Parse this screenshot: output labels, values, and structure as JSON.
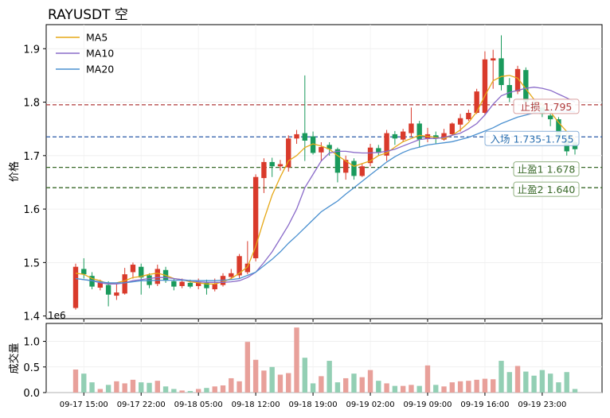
{
  "chart_data": {
    "type": "candlestick",
    "title": "RAYUSDT  空",
    "ylabel": "价格",
    "volume_ylabel": "成交量",
    "volume_multiplier_label": "1e6",
    "ylim": [
      1.395,
      1.945
    ],
    "yticks": [
      1.4,
      1.5,
      1.6,
      1.7,
      1.8,
      1.9
    ],
    "volume_ylim": [
      0,
      1.35
    ],
    "volume_yticks": [
      0.0,
      0.5,
      1.0
    ],
    "x_tick_labels": [
      "09-17 15:00",
      "09-17 22:00",
      "09-18 05:00",
      "09-18 12:00",
      "09-18 19:00",
      "09-19 02:00",
      "09-19 09:00",
      "09-19 16:00",
      "09-19 23:00"
    ],
    "x_tick_indices": [
      1,
      8,
      15,
      22,
      29,
      36,
      43,
      50,
      57
    ],
    "legend": {
      "position": "top-left",
      "entries": [
        {
          "name": "MA5",
          "color": "#e6a817"
        },
        {
          "name": "MA10",
          "color": "#8a6bc9"
        },
        {
          "name": "MA20",
          "color": "#4a90d0"
        }
      ]
    },
    "colors": {
      "up": "#d93a2b",
      "down": "#1a9a5c",
      "vol_up": "#e8a09a",
      "vol_down": "#93cfb4"
    },
    "levels": [
      {
        "label": "止损 1.795",
        "value": 1.795,
        "color": "#b03a3a",
        "text_color": "#b03a3a",
        "border": "#d9a0a0"
      },
      {
        "label": "入场 1.735-1.755",
        "value": 1.735,
        "color": "#2a5aa8",
        "text_color": "#2a6fb0",
        "border": "#8ab0d8"
      },
      {
        "label": "止盈1 1.678",
        "value": 1.678,
        "color": "#3a6a2a",
        "text_color": "#3a6a2a",
        "border": "#90b080"
      },
      {
        "label": "止盈2 1.640",
        "value": 1.64,
        "color": "#3a6a2a",
        "text_color": "#3a6a2a",
        "border": "#90b080"
      }
    ],
    "candles": [
      [
        1.415,
        1.492,
        1.498,
        1.412
      ],
      [
        1.488,
        1.478,
        1.508,
        1.47
      ],
      [
        1.475,
        1.455,
        1.482,
        1.45
      ],
      [
        1.453,
        1.462,
        1.468,
        1.448
      ],
      [
        1.458,
        1.44,
        1.465,
        1.418
      ],
      [
        1.438,
        1.444,
        1.46,
        1.43
      ],
      [
        1.442,
        1.478,
        1.49,
        1.44
      ],
      [
        1.482,
        1.496,
        1.5,
        1.47
      ],
      [
        1.492,
        1.472,
        1.498,
        1.44
      ],
      [
        1.476,
        1.458,
        1.48,
        1.452
      ],
      [
        1.46,
        1.488,
        1.496,
        1.456
      ],
      [
        1.486,
        1.466,
        1.492,
        1.462
      ],
      [
        1.465,
        1.455,
        1.47,
        1.448
      ],
      [
        1.456,
        1.464,
        1.47,
        1.452
      ],
      [
        1.462,
        1.455,
        1.468,
        1.452
      ],
      [
        1.456,
        1.464,
        1.47,
        1.45
      ],
      [
        1.462,
        1.452,
        1.468,
        1.44
      ],
      [
        1.45,
        1.46,
        1.47,
        1.446
      ],
      [
        1.458,
        1.475,
        1.48,
        1.455
      ],
      [
        1.473,
        1.48,
        1.488,
        1.468
      ],
      [
        1.476,
        1.512,
        1.516,
        1.47
      ],
      [
        1.482,
        1.498,
        1.54,
        1.478
      ],
      [
        1.508,
        1.66,
        1.665,
        1.502
      ],
      [
        1.658,
        1.688,
        1.695,
        1.63
      ],
      [
        1.688,
        1.68,
        1.696,
        1.66
      ],
      [
        1.68,
        1.684,
        1.692,
        1.672
      ],
      [
        1.678,
        1.732,
        1.738,
        1.67
      ],
      [
        1.732,
        1.74,
        1.748,
        1.722
      ],
      [
        1.742,
        1.728,
        1.85,
        1.69
      ],
      [
        1.736,
        1.705,
        1.745,
        1.702
      ],
      [
        1.706,
        1.716,
        1.725,
        1.69
      ],
      [
        1.72,
        1.712,
        1.725,
        1.7
      ],
      [
        1.712,
        1.668,
        1.715,
        1.65
      ],
      [
        1.668,
        1.692,
        1.7,
        1.655
      ],
      [
        1.69,
        1.662,
        1.695,
        1.655
      ],
      [
        1.662,
        1.68,
        1.685,
        1.66
      ],
      [
        1.686,
        1.715,
        1.722,
        1.68
      ],
      [
        1.714,
        1.705,
        1.72,
        1.7
      ],
      [
        1.7,
        1.742,
        1.748,
        1.69
      ],
      [
        1.74,
        1.732,
        1.746,
        1.72
      ],
      [
        1.73,
        1.745,
        1.75,
        1.725
      ],
      [
        1.742,
        1.76,
        1.79,
        1.735
      ],
      [
        1.76,
        1.73,
        1.765,
        1.715
      ],
      [
        1.732,
        1.74,
        1.752,
        1.725
      ],
      [
        1.738,
        1.732,
        1.745,
        1.722
      ],
      [
        1.73,
        1.742,
        1.75,
        1.728
      ],
      [
        1.74,
        1.76,
        1.762,
        1.738
      ],
      [
        1.758,
        1.77,
        1.778,
        1.745
      ],
      [
        1.768,
        1.78,
        1.786,
        1.765
      ],
      [
        1.78,
        1.82,
        1.825,
        1.778
      ],
      [
        1.78,
        1.88,
        1.895,
        1.775
      ],
      [
        1.878,
        1.882,
        1.898,
        1.825
      ],
      [
        1.882,
        1.832,
        1.925,
        1.822
      ],
      [
        1.832,
        1.808,
        1.845,
        1.8
      ],
      [
        1.82,
        1.862,
        1.868,
        1.815
      ],
      [
        1.86,
        1.8,
        1.865,
        1.795
      ],
      [
        1.798,
        1.788,
        1.805,
        1.78
      ],
      [
        1.79,
        1.778,
        1.8,
        1.772
      ],
      [
        1.775,
        1.768,
        1.778,
        1.755
      ],
      [
        1.768,
        1.732,
        1.772,
        1.728
      ],
      [
        1.73,
        1.708,
        1.742,
        1.7
      ],
      [
        1.725,
        1.712,
        1.728,
        1.702
      ]
    ],
    "volume": [
      0.45,
      0.37,
      0.2,
      0.07,
      0.15,
      0.22,
      0.18,
      0.25,
      0.2,
      0.19,
      0.23,
      0.12,
      0.07,
      0.04,
      0.03,
      0.07,
      0.09,
      0.12,
      0.14,
      0.28,
      0.22,
      0.99,
      0.64,
      0.43,
      0.5,
      0.35,
      0.38,
      1.27,
      0.68,
      0.18,
      0.32,
      0.62,
      0.2,
      0.28,
      0.37,
      0.3,
      0.44,
      0.23,
      0.18,
      0.13,
      0.13,
      0.15,
      0.13,
      0.53,
      0.15,
      0.12,
      0.2,
      0.22,
      0.23,
      0.25,
      0.27,
      0.26,
      0.62,
      0.4,
      0.52,
      0.41,
      0.33,
      0.44,
      0.37,
      0.2,
      0.4,
      0.07
    ],
    "ma5": [
      1.48,
      1.478,
      1.47,
      1.466,
      1.46,
      1.462,
      1.466,
      1.472,
      1.474,
      1.478,
      1.48,
      1.476,
      1.47,
      1.468,
      1.464,
      1.462,
      1.46,
      1.46,
      1.464,
      1.47,
      1.48,
      1.492,
      1.53,
      1.58,
      1.626,
      1.66,
      1.69,
      1.7,
      1.715,
      1.722,
      1.718,
      1.712,
      1.7,
      1.69,
      1.68,
      1.685,
      1.69,
      1.7,
      1.705,
      1.716,
      1.726,
      1.732,
      1.738,
      1.736,
      1.734,
      1.732,
      1.738,
      1.748,
      1.762,
      1.782,
      1.812,
      1.84,
      1.848,
      1.85,
      1.845,
      1.825,
      1.805,
      1.795,
      1.782,
      1.762,
      1.745,
      1.73
    ],
    "ma10": [
      1.47,
      1.468,
      1.466,
      1.462,
      1.46,
      1.46,
      1.462,
      1.466,
      1.468,
      1.47,
      1.472,
      1.472,
      1.47,
      1.468,
      1.466,
      1.464,
      1.463,
      1.463,
      1.463,
      1.464,
      1.466,
      1.472,
      1.482,
      1.5,
      1.52,
      1.545,
      1.57,
      1.6,
      1.64,
      1.665,
      1.69,
      1.705,
      1.708,
      1.708,
      1.706,
      1.705,
      1.705,
      1.706,
      1.708,
      1.712,
      1.718,
      1.724,
      1.73,
      1.732,
      1.732,
      1.734,
      1.738,
      1.742,
      1.75,
      1.76,
      1.776,
      1.796,
      1.812,
      1.818,
      1.822,
      1.826,
      1.828,
      1.826,
      1.822,
      1.815,
      1.808,
      1.8
    ],
    "ma20": [
      1.47,
      1.468,
      1.466,
      1.464,
      1.462,
      1.462,
      1.462,
      1.464,
      1.466,
      1.466,
      1.467,
      1.467,
      1.467,
      1.467,
      1.466,
      1.466,
      1.466,
      1.466,
      1.467,
      1.468,
      1.47,
      1.476,
      1.482,
      1.494,
      1.506,
      1.52,
      1.536,
      1.55,
      1.565,
      1.58,
      1.595,
      1.605,
      1.615,
      1.628,
      1.64,
      1.652,
      1.664,
      1.676,
      1.688,
      1.698,
      1.706,
      1.712,
      1.716,
      1.72,
      1.722,
      1.724,
      1.726,
      1.73,
      1.734,
      1.74,
      1.746,
      1.752,
      1.76,
      1.766,
      1.772,
      1.776,
      1.78,
      1.782,
      1.784,
      1.784,
      1.783,
      1.782
    ]
  }
}
